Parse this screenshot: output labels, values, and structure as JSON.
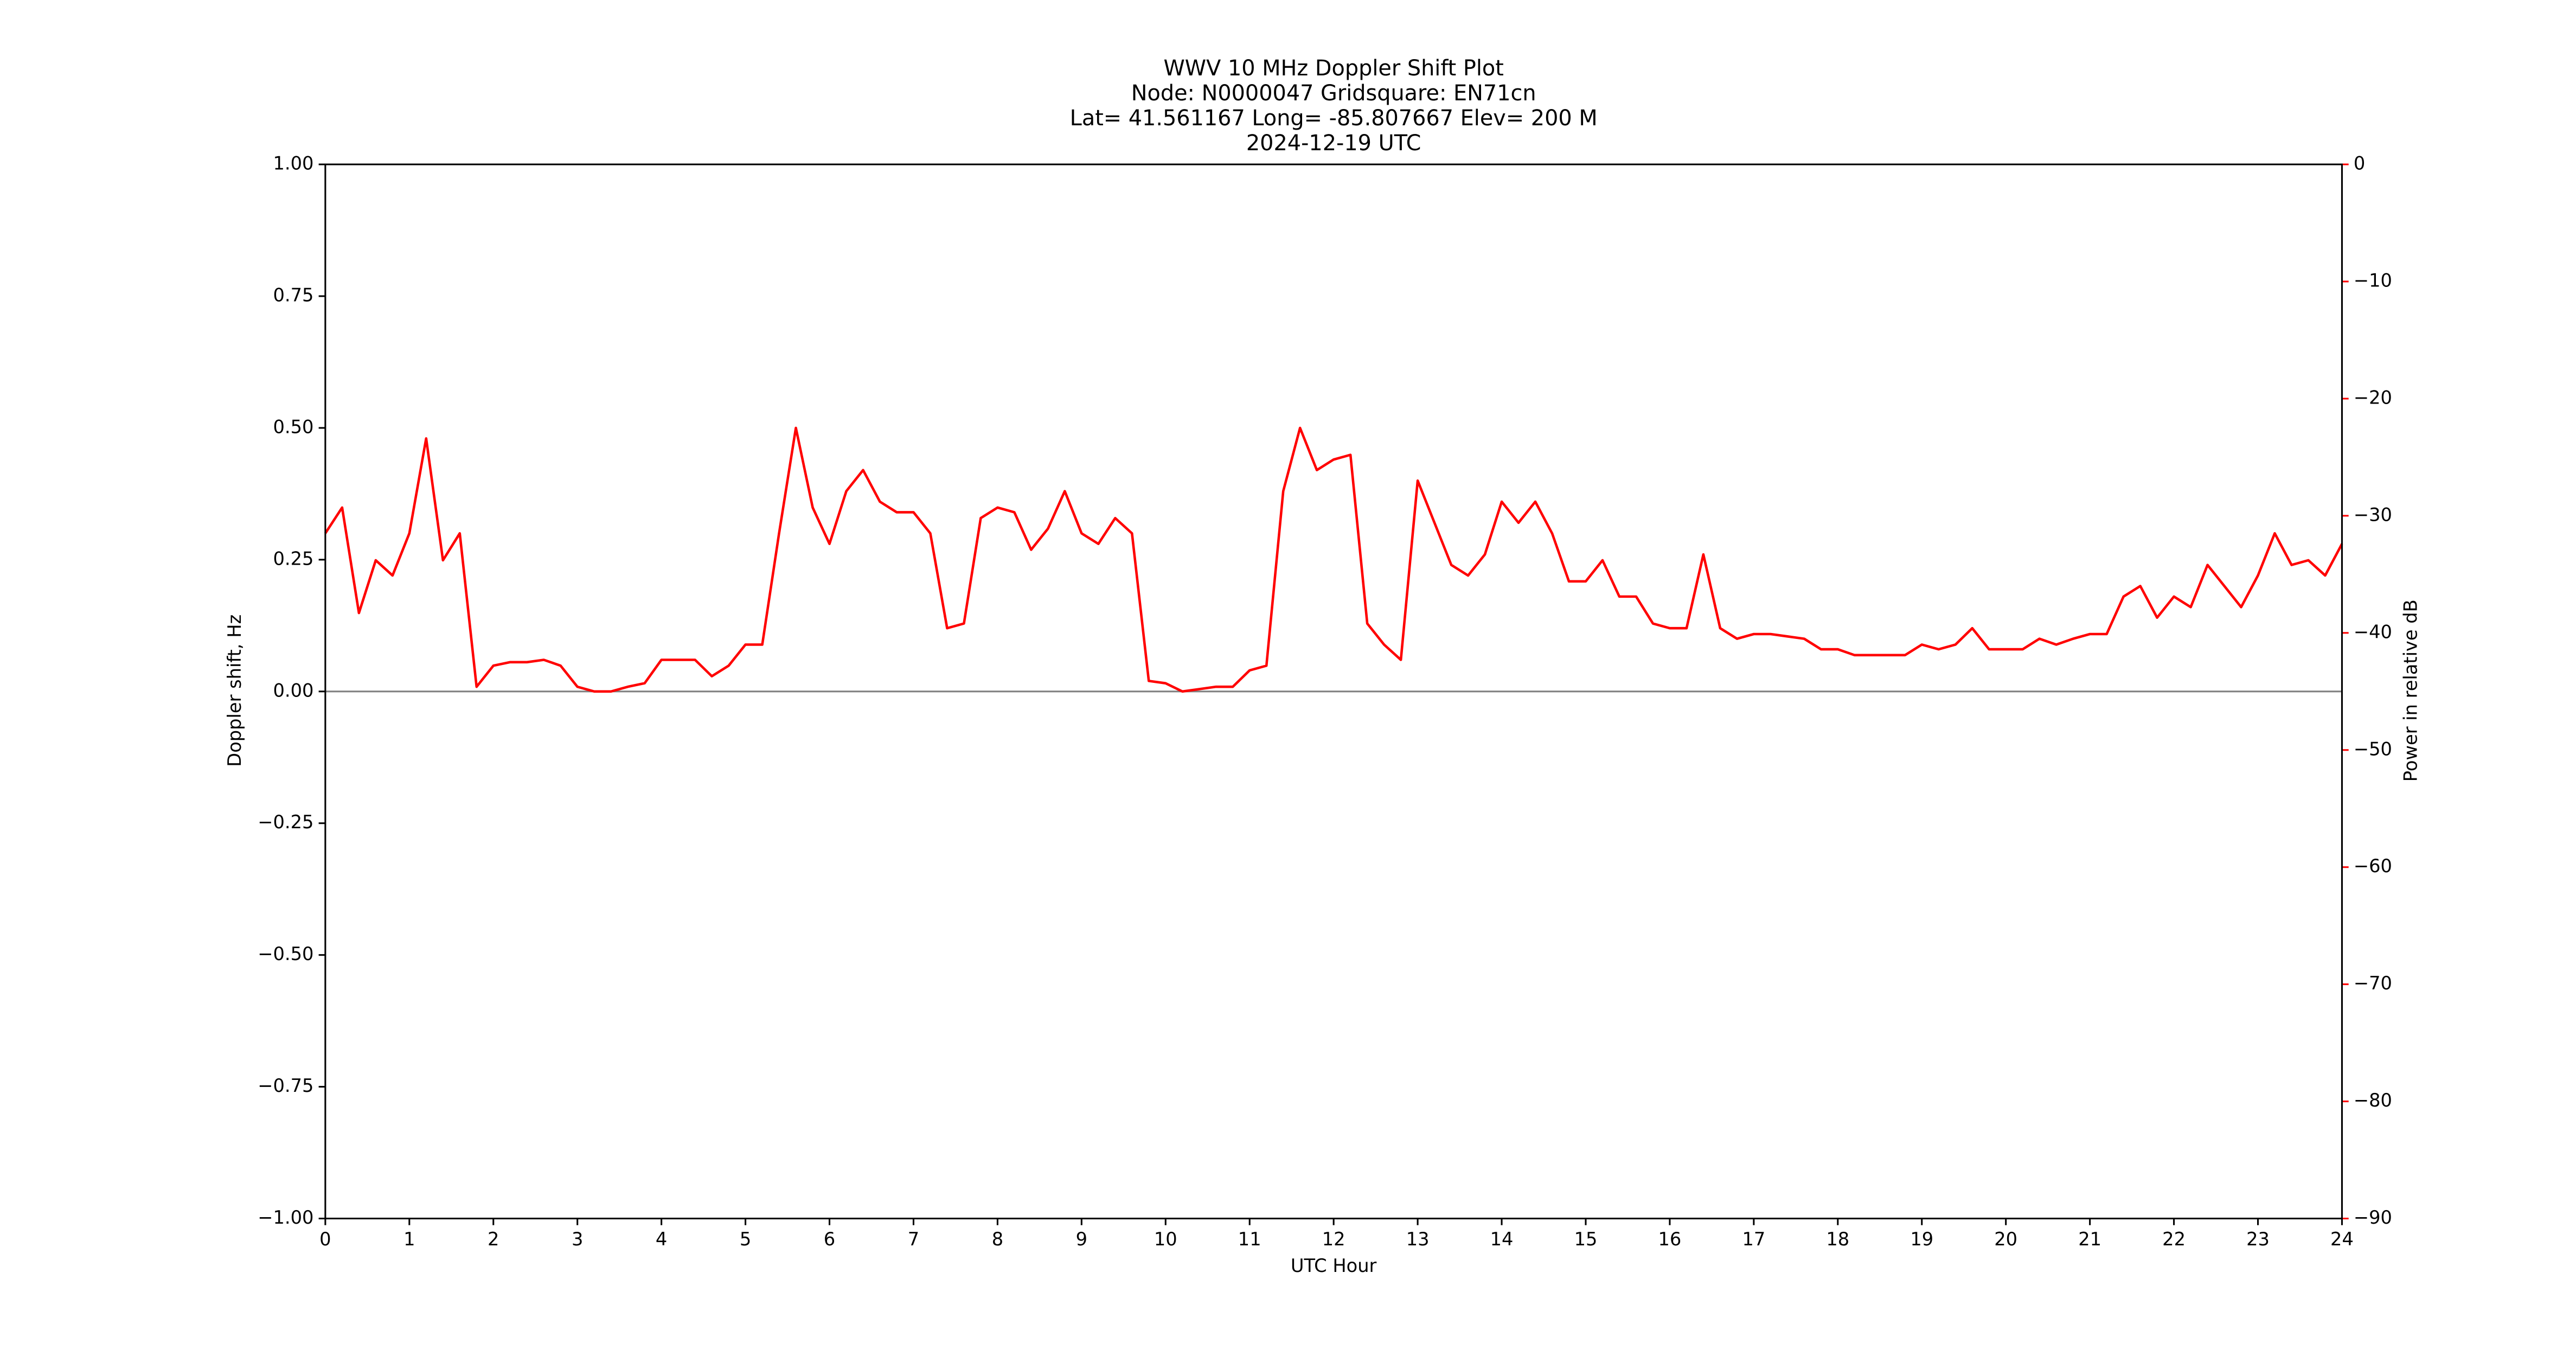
{
  "chart_data": {
    "type": "line",
    "title": [
      "WWV 10 MHz Doppler Shift Plot",
      "Node:  N0000047     Gridsquare:  EN71cn",
      "Lat= 41.561167    Long= -85.807667    Elev= 200 M",
      "2024-12-19  UTC"
    ],
    "xlabel": "UTC Hour",
    "ylabel": "Doppler shift, Hz",
    "y2label": "Power in relative dB",
    "x": [
      0,
      0.2,
      0.4,
      0.6,
      0.8,
      1,
      1.2,
      1.4,
      1.6,
      1.8,
      2,
      2.2,
      2.4,
      2.6,
      2.8,
      3,
      3.2,
      3.4,
      3.6,
      3.8,
      4,
      4.2,
      4.4,
      4.6,
      4.8,
      5,
      5.2,
      5.4,
      5.6,
      5.8,
      6,
      6.2,
      6.4,
      6.6,
      6.8,
      7,
      7.2,
      7.4,
      7.6,
      7.8,
      8,
      8.2,
      8.4,
      8.6,
      8.8,
      9,
      9.2,
      9.4,
      9.6,
      9.8,
      10,
      10.2,
      10.4,
      10.6,
      10.8,
      11,
      11.2,
      11.4,
      11.6,
      11.8,
      12,
      12.2,
      12.4,
      12.6,
      12.8,
      13,
      13.2,
      13.4,
      13.6,
      13.8,
      14,
      14.2,
      14.4,
      14.6,
      14.8,
      15,
      15.2,
      15.4,
      15.6,
      15.8,
      16,
      16.2,
      16.4,
      16.6,
      16.8,
      17,
      17.2,
      17.4,
      17.6,
      17.8,
      18,
      18.2,
      18.4,
      18.6,
      18.8,
      19,
      19.2,
      19.4,
      19.6,
      19.8,
      20,
      20.2,
      20.4,
      20.6,
      20.8,
      21,
      21.2,
      21.4,
      21.6,
      21.8,
      22,
      22.2,
      22.4,
      22.6,
      22.8,
      23,
      23.2,
      23.4,
      23.6,
      23.8,
      24
    ],
    "series": [
      {
        "name": "Power in relative dB",
        "color": "#ff0000",
        "axis": "y2",
        "values": [
          -31.5,
          -29.3,
          -38.3,
          -33.8,
          -35.1,
          -31.5,
          -23.4,
          -33.8,
          -31.5,
          -44.6,
          -42.8,
          -42.5,
          -42.5,
          -42.3,
          -42.8,
          -44.6,
          -45,
          -45,
          -44.6,
          -44.3,
          -42.3,
          -42.3,
          -42.3,
          -43.7,
          -42.8,
          -41.0,
          -41.0,
          -31.5,
          -22.5,
          -29.3,
          -32.4,
          -27.9,
          -26.1,
          -28.8,
          -29.7,
          -29.7,
          -31.5,
          -39.6,
          -39.2,
          -30.2,
          -29.3,
          -29.7,
          -32.9,
          -31.1,
          -27.9,
          -31.5,
          -32.4,
          -30.2,
          -31.5,
          -44.1,
          -44.3,
          -45,
          -44.8,
          -44.6,
          -44.6,
          -43.2,
          -42.8,
          -27.9,
          -22.5,
          -26.1,
          -25.2,
          -24.8,
          -39.2,
          -41.0,
          -42.3,
          -27.0,
          -30.6,
          -34.2,
          -35.1,
          -33.3,
          -28.8,
          -30.6,
          -28.8,
          -31.5,
          -35.6,
          -35.6,
          -33.8,
          -36.9,
          -36.9,
          -39.2,
          -39.6,
          -39.6,
          -33.3,
          -39.6,
          -40.5,
          -40.1,
          -40.1,
          -40.3,
          -40.5,
          -41.4,
          -41.4,
          -41.9,
          -41.9,
          -41.9,
          -41.9,
          -41.0,
          -41.4,
          -41.0,
          -39.6,
          -41.4,
          -41.4,
          -41.4,
          -40.5,
          -41.0,
          -40.5,
          -40.1,
          -40.1,
          -36.9,
          -36.0,
          -38.7,
          -36.9,
          -37.8,
          -34.2,
          -36.0,
          -37.8,
          -35.1,
          -31.5,
          -34.2,
          -33.8,
          -35.1,
          -32.4
        ]
      }
    ],
    "xlim": [
      0,
      24
    ],
    "xticks": [
      0,
      1,
      2,
      3,
      4,
      5,
      6,
      7,
      8,
      9,
      10,
      11,
      12,
      13,
      14,
      15,
      16,
      17,
      18,
      19,
      20,
      21,
      22,
      23,
      24
    ],
    "ylim": [
      -1,
      1
    ],
    "yticks": [
      {
        "value": -1,
        "label": "−1.00"
      },
      {
        "value": -0.75,
        "label": "−0.75"
      },
      {
        "value": -0.5,
        "label": "−0.50"
      },
      {
        "value": -0.25,
        "label": "−0.25"
      },
      {
        "value": 0,
        "label": "0.00"
      },
      {
        "value": 0.25,
        "label": "0.25"
      },
      {
        "value": 0.5,
        "label": "0.50"
      },
      {
        "value": 0.75,
        "label": "0.75"
      },
      {
        "value": 1,
        "label": "1.00"
      }
    ],
    "y2lim": [
      -90,
      0
    ],
    "y2ticks": [
      {
        "value": -90,
        "label": "−90"
      },
      {
        "value": -80,
        "label": "−80"
      },
      {
        "value": -70,
        "label": "−70"
      },
      {
        "value": -60,
        "label": "−60"
      },
      {
        "value": -50,
        "label": "−50"
      },
      {
        "value": -40,
        "label": "−40"
      },
      {
        "value": -30,
        "label": "−30"
      },
      {
        "value": -20,
        "label": "−20"
      },
      {
        "value": -10,
        "label": "−10"
      },
      0
    ],
    "y2color": "#ff0000",
    "hline": 0
  }
}
